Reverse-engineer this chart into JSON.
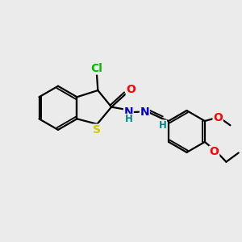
{
  "background_color": "#ebebeb",
  "bond_color": "#000000",
  "bond_width": 1.6,
  "atom_colors": {
    "Cl": "#00bb00",
    "O": "#ff0000",
    "N": "#0000cc",
    "S": "#cccc00",
    "H": "#008888",
    "C": "#000000"
  },
  "font_size": 10,
  "font_size_small": 8.5
}
